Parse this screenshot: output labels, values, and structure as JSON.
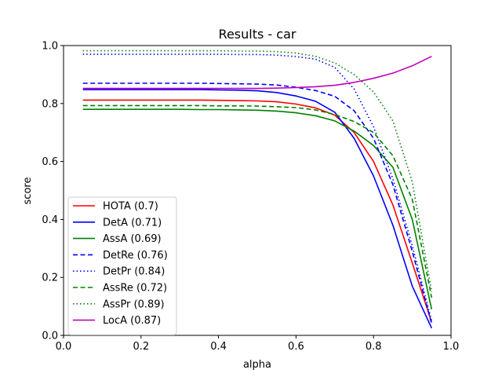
{
  "chart_data": {
    "type": "line",
    "title": "Results - car",
    "xlabel": "alpha",
    "ylabel": "score",
    "xlim": [
      0,
      1
    ],
    "ylim": [
      0,
      1
    ],
    "xticks": [
      0.0,
      0.2,
      0.4,
      0.6,
      0.8,
      1.0
    ],
    "xtick_labels": [
      "0.0",
      "0.2",
      "0.4",
      "0.6",
      "0.8",
      "1.0"
    ],
    "yticks": [
      0.0,
      0.2,
      0.4,
      0.6,
      0.8,
      1.0
    ],
    "ytick_labels": [
      "0.0",
      "0.2",
      "0.4",
      "0.6",
      "0.8",
      "1.0"
    ],
    "grid": false,
    "legend_position": "lower-left",
    "x": [
      0.05,
      0.1,
      0.15,
      0.2,
      0.25,
      0.3,
      0.35,
      0.4,
      0.45,
      0.5,
      0.55,
      0.6,
      0.65,
      0.7,
      0.75,
      0.8,
      0.85,
      0.9,
      0.95
    ],
    "series": [
      {
        "name": "HOTA (0.7)",
        "color": "#ff0000",
        "style": "solid",
        "values": [
          0.812,
          0.812,
          0.812,
          0.812,
          0.812,
          0.812,
          0.812,
          0.811,
          0.81,
          0.809,
          0.806,
          0.798,
          0.785,
          0.76,
          0.7,
          0.6,
          0.45,
          0.25,
          0.045
        ]
      },
      {
        "name": "DetA (0.71)",
        "color": "#0000ff",
        "style": "solid",
        "values": [
          0.848,
          0.848,
          0.848,
          0.848,
          0.848,
          0.848,
          0.848,
          0.847,
          0.846,
          0.844,
          0.838,
          0.826,
          0.808,
          0.77,
          0.68,
          0.55,
          0.38,
          0.17,
          0.025
        ]
      },
      {
        "name": "AssA (0.69)",
        "color": "#008000",
        "style": "solid",
        "values": [
          0.78,
          0.78,
          0.78,
          0.78,
          0.78,
          0.78,
          0.779,
          0.779,
          0.778,
          0.777,
          0.774,
          0.768,
          0.758,
          0.74,
          0.705,
          0.655,
          0.58,
          0.4,
          0.09
        ]
      },
      {
        "name": "DetRe (0.76)",
        "color": "#0000ff",
        "style": "dashed",
        "values": [
          0.87,
          0.87,
          0.87,
          0.87,
          0.87,
          0.87,
          0.87,
          0.869,
          0.868,
          0.867,
          0.864,
          0.856,
          0.845,
          0.825,
          0.775,
          0.68,
          0.52,
          0.29,
          0.04
        ]
      },
      {
        "name": "DetPr (0.84)",
        "color": "#0000ff",
        "style": "dotted",
        "values": [
          0.97,
          0.97,
          0.97,
          0.97,
          0.97,
          0.97,
          0.97,
          0.97,
          0.969,
          0.969,
          0.967,
          0.962,
          0.953,
          0.925,
          0.85,
          0.72,
          0.54,
          0.31,
          0.05
        ]
      },
      {
        "name": "AssRe (0.72)",
        "color": "#008000",
        "style": "dashed",
        "values": [
          0.793,
          0.793,
          0.793,
          0.793,
          0.793,
          0.793,
          0.793,
          0.792,
          0.792,
          0.791,
          0.789,
          0.786,
          0.778,
          0.762,
          0.738,
          0.7,
          0.62,
          0.47,
          0.13
        ]
      },
      {
        "name": "AssPr (0.89)",
        "color": "#008000",
        "style": "dotted",
        "values": [
          0.982,
          0.982,
          0.982,
          0.982,
          0.982,
          0.982,
          0.982,
          0.982,
          0.981,
          0.981,
          0.979,
          0.974,
          0.963,
          0.94,
          0.9,
          0.84,
          0.74,
          0.53,
          0.15
        ]
      },
      {
        "name": "LocA (0.87)",
        "color": "#bf00bf",
        "style": "solid",
        "values": [
          0.852,
          0.852,
          0.852,
          0.852,
          0.852,
          0.852,
          0.852,
          0.852,
          0.852,
          0.852,
          0.853,
          0.855,
          0.858,
          0.863,
          0.873,
          0.887,
          0.905,
          0.93,
          0.963
        ]
      }
    ]
  }
}
